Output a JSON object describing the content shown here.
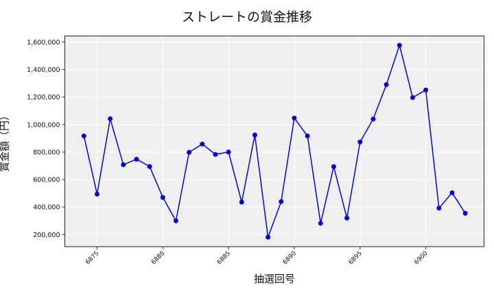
{
  "chart_data": {
    "type": "line",
    "title": "ストレートの賞金推移",
    "xlabel": "抽選回号",
    "ylabel": "賞金額（円）",
    "x": [
      6874,
      6875,
      6876,
      6877,
      6878,
      6879,
      6880,
      6881,
      6882,
      6883,
      6884,
      6885,
      6886,
      6887,
      6888,
      6889,
      6890,
      6891,
      6892,
      6893,
      6894,
      6895,
      6896,
      6897,
      6898,
      6899,
      6900,
      6901,
      6902,
      6903
    ],
    "series": [
      {
        "name": "ストレート",
        "color": "#0000dd",
        "values": [
          917000,
          494000,
          1042000,
          708000,
          748000,
          695000,
          470000,
          300000,
          798000,
          858000,
          783000,
          800000,
          436000,
          924000,
          181000,
          440000,
          1047000,
          917000,
          282000,
          694000,
          320000,
          873000,
          1040000,
          1290000,
          1576000,
          1196000,
          1251000,
          392000,
          504000,
          355000
        ]
      }
    ],
    "xticks": [
      6875,
      6880,
      6885,
      6890,
      6895,
      6900
    ],
    "xtick_labels": [
      "6875",
      "6880",
      "6885",
      "6890",
      "6895",
      "6900"
    ],
    "yticks": [
      200000,
      400000,
      600000,
      800000,
      1000000,
      1200000,
      1400000,
      1600000
    ],
    "ytick_labels": [
      "200,000",
      "400,000",
      "600,000",
      "800,000",
      "1,000,000",
      "1,200,000",
      "1,400,000",
      "1,600,000"
    ],
    "xlim": [
      6872.55,
      6904.43
    ],
    "ylim": [
      112000,
      1644000
    ],
    "grid": true,
    "background": "#efefef",
    "legend": null
  }
}
